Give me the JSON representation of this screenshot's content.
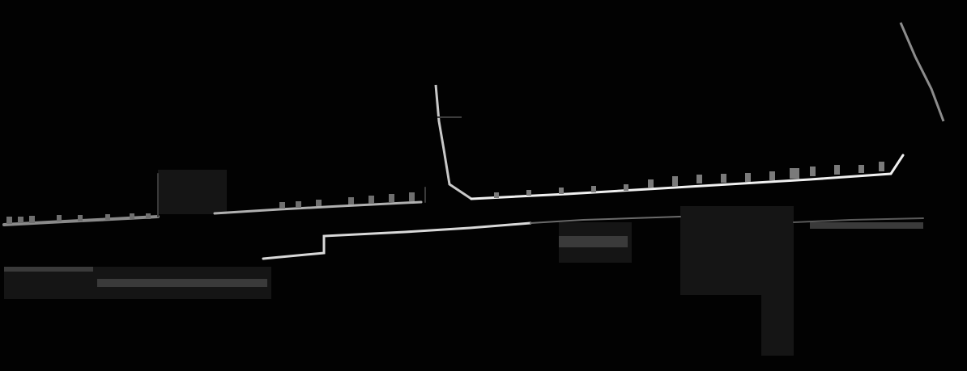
{
  "image": {
    "kind": "grayscale edge / depth map of a building street scene on black background",
    "background_color": "#000000",
    "edge_colors": {
      "bright": "#f2f2f2",
      "mid": "#9a9a9a",
      "dim": "#4a4a4a",
      "faint": "#222222"
    }
  }
}
